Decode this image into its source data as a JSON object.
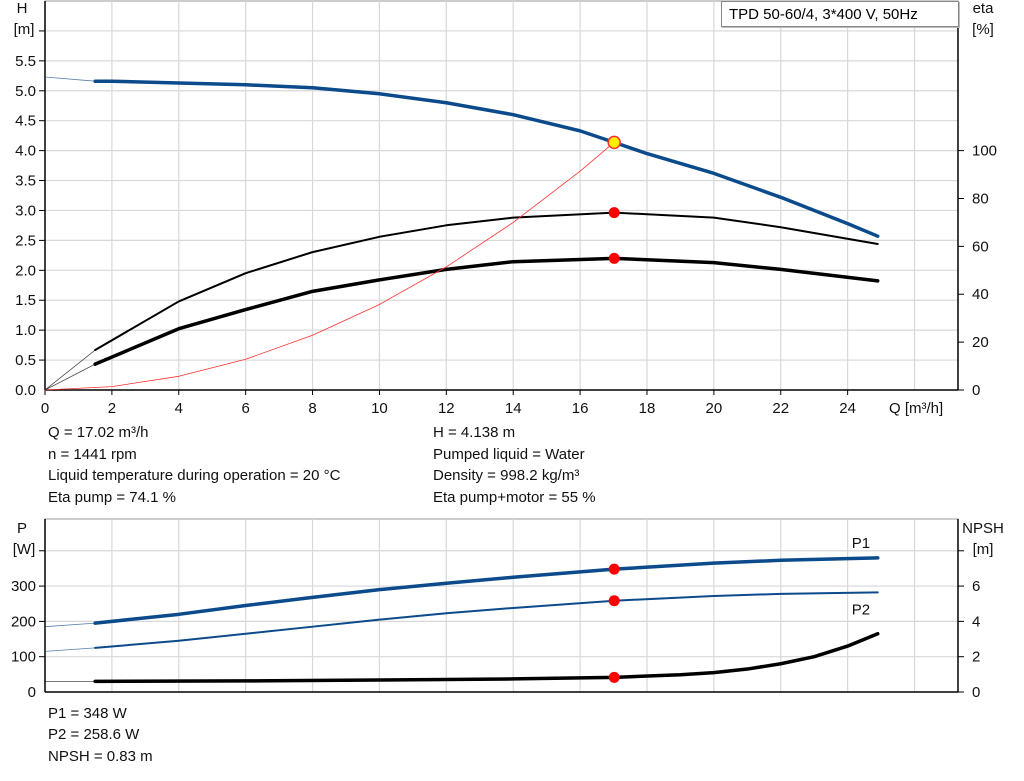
{
  "chart_data": [
    {
      "type": "line",
      "title": "",
      "legend_box": "TPD 50-60/4, 3*400 V, 50Hz",
      "xlabel": "Q [m³/h]",
      "ylabel_left": [
        "H",
        "[m]"
      ],
      "ylabel_right": [
        "eta",
        "[%]"
      ],
      "xlim": [
        0,
        27.3
      ],
      "ylim_left": [
        0,
        6.5
      ],
      "ylim_right": [
        0,
        162.5
      ],
      "x_ticks": [
        "0",
        "2",
        "4",
        "6",
        "8",
        "10",
        "12",
        "14",
        "16",
        "18",
        "20",
        "22",
        "24"
      ],
      "y_ticks_left": [
        "0.0",
        "0.5",
        "1.0",
        "1.5",
        "2.0",
        "2.5",
        "3.0",
        "3.5",
        "4.0",
        "4.5",
        "5.0",
        "5.5"
      ],
      "y_ticks_right": [
        "0",
        "20",
        "40",
        "60",
        "80",
        "100"
      ],
      "grid": true,
      "series": [
        {
          "axis": "left",
          "color": "#0b4a8b",
          "q": [
            1.5,
            2,
            4,
            6,
            8,
            10,
            12,
            14,
            16,
            17.02,
            18,
            20,
            22,
            24,
            24.9
          ],
          "values": [
            5.16,
            5.16,
            5.13,
            5.1,
            5.05,
            4.95,
            4.8,
            4.6,
            4.33,
            4.138,
            3.95,
            3.62,
            3.22,
            2.78,
            2.57
          ],
          "extension": {
            "q": [
              0,
              1.5
            ],
            "values": [
              5.23,
              5.16
            ]
          }
        },
        {
          "axis": "right",
          "color": "#000000",
          "q": [
            1.5,
            4,
            6,
            8,
            10,
            12,
            14,
            17.02,
            20,
            22,
            24.9
          ],
          "values": [
            16.7,
            37,
            48.8,
            57.6,
            64,
            68.8,
            72,
            74.1,
            72,
            68,
            61
          ],
          "extension": {
            "q": [
              0,
              1.5
            ],
            "values": [
              0,
              16.7
            ]
          }
        },
        {
          "axis": "right",
          "color": "#000000",
          "q": [
            1.5,
            4,
            6,
            8,
            10,
            12,
            14,
            17.02,
            20,
            22,
            24.9
          ],
          "values": [
            10.8,
            25.6,
            33.6,
            41.2,
            46,
            50.4,
            53.6,
            55,
            53.2,
            50.4,
            45.6
          ],
          "extension": {
            "q": [
              0,
              1.5
            ],
            "values": [
              0,
              10.8
            ]
          }
        },
        {
          "axis": "left",
          "color": "#ff3030",
          "q": [
            0,
            2,
            4,
            6,
            8,
            10,
            12,
            14,
            16,
            17.02
          ],
          "values": [
            0,
            0.057,
            0.229,
            0.514,
            0.914,
            1.429,
            2.057,
            2.8,
            3.657,
            4.138
          ]
        }
      ],
      "operating_points": [
        {
          "axis": "left",
          "q": 17.02,
          "value": 4.138,
          "color": "#ffee00"
        },
        {
          "axis": "right",
          "q": 17.02,
          "value": 74.1,
          "color": "#ff0000"
        },
        {
          "axis": "right",
          "q": 17.02,
          "value": 55,
          "color": "#ff0000"
        }
      ]
    },
    {
      "type": "line",
      "title": "",
      "ylabel_left": [
        "P",
        "[W]"
      ],
      "ylabel_right": [
        "NPSH",
        "[m]"
      ],
      "xlim": [
        0,
        27.3
      ],
      "ylim_left": [
        0,
        490
      ],
      "ylim_right": [
        0,
        9.8
      ],
      "y_ticks_left": [
        "0",
        "100",
        "200",
        "300"
      ],
      "y_ticks_right": [
        "0",
        "2",
        "4",
        "6"
      ],
      "grid": true,
      "series": [
        {
          "name": "P1",
          "axis": "left",
          "color": "#0b4a8b",
          "q": [
            1.5,
            4,
            6,
            8,
            10,
            12,
            14,
            17.02,
            20,
            22,
            24.9
          ],
          "values": [
            195,
            220,
            245,
            268,
            290,
            308,
            325,
            348,
            365,
            373,
            380
          ],
          "extension": {
            "q": [
              0,
              1.5
            ],
            "values": [
              185,
              195
            ]
          }
        },
        {
          "name": "P2",
          "axis": "left",
          "color": "#0b4a8b",
          "q": [
            1.5,
            4,
            6,
            8,
            10,
            12,
            14,
            17.02,
            20,
            22,
            24.9
          ],
          "values": [
            125,
            145,
            165,
            185,
            205,
            223,
            238,
            258.6,
            272,
            278,
            282
          ],
          "extension": {
            "q": [
              0,
              1.5
            ],
            "values": [
              115,
              125
            ]
          }
        },
        {
          "axis": "right",
          "color": "#000000",
          "q": [
            1.5,
            6,
            10,
            14,
            17.02,
            19,
            20,
            21,
            22,
            23,
            24,
            24.9
          ],
          "values": [
            0.6,
            0.63,
            0.68,
            0.74,
            0.83,
            0.98,
            1.1,
            1.3,
            1.6,
            2.0,
            2.6,
            3.3
          ],
          "extension": {
            "q": [
              0,
              1.5
            ],
            "values": [
              0.6,
              0.6
            ]
          }
        }
      ],
      "operating_points": [
        {
          "axis": "left",
          "q": 17.02,
          "value": 348,
          "color": "#ff0000"
        },
        {
          "axis": "left",
          "q": 17.02,
          "value": 258.6,
          "color": "#ff0000"
        },
        {
          "axis": "right",
          "q": 17.02,
          "value": 0.83,
          "color": "#ff0000"
        }
      ]
    }
  ],
  "info_top": {
    "left": [
      "Q = 17.02 m³/h",
      "n = 1441 rpm",
      "Liquid temperature during operation = 20 °C",
      "Eta pump = 74.1 %"
    ],
    "right": [
      "H = 4.138 m",
      "Pumped liquid = Water",
      "Density = 998.2 kg/m³",
      "Eta pump+motor = 55 %"
    ]
  },
  "info_bottom": [
    "P1 = 348 W",
    "P2 = 258.6 W",
    "NPSH = 0.83 m"
  ]
}
